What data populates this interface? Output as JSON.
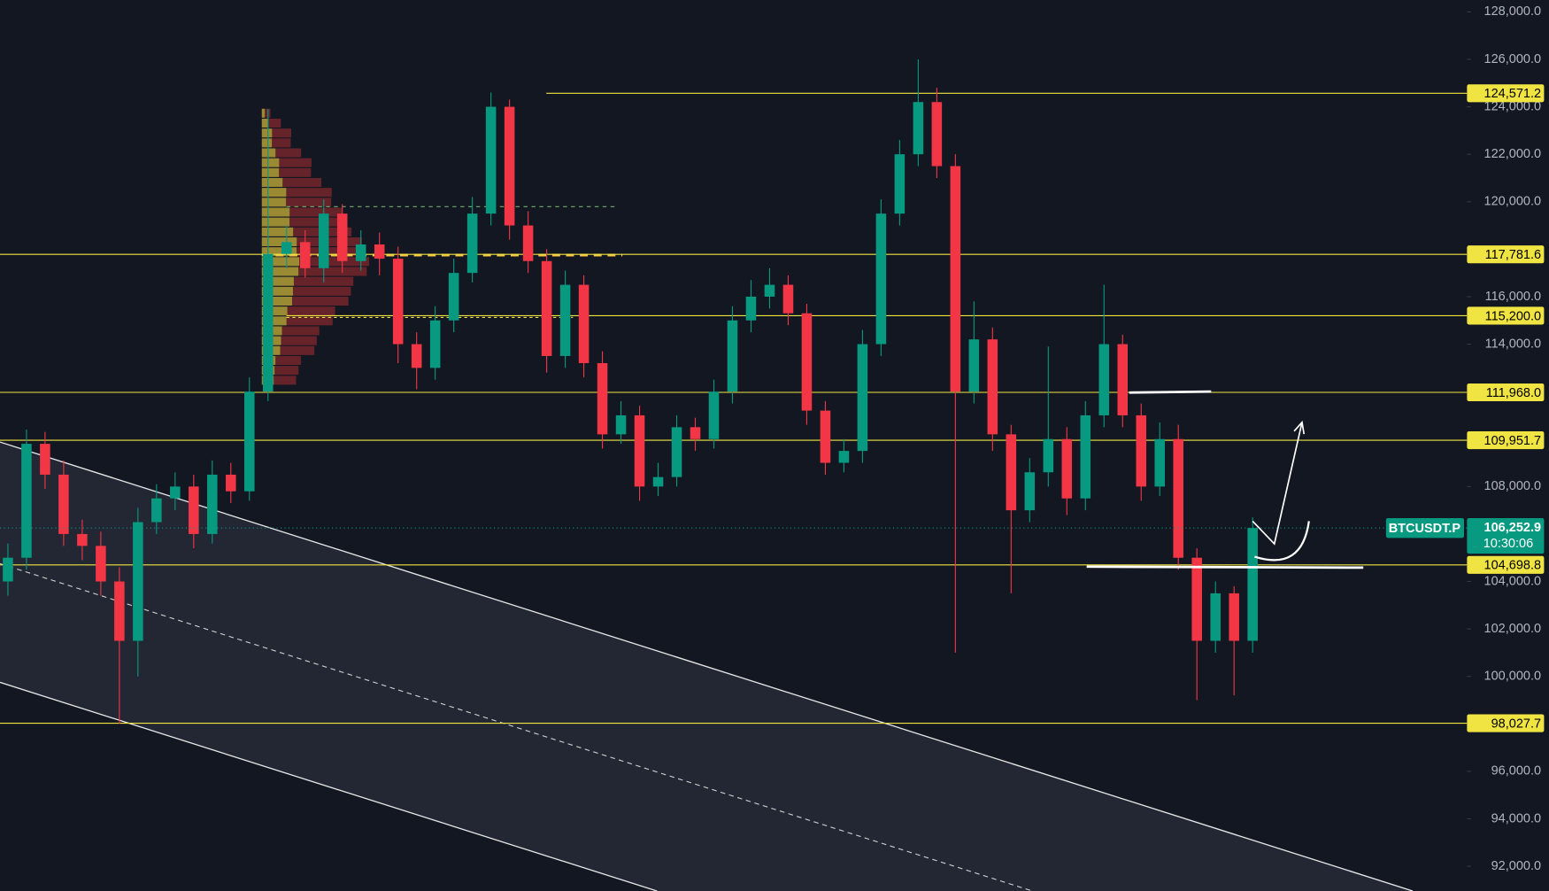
{
  "chart_data": {
    "type": "candlestick",
    "up_color": "#089981",
    "down_color": "#f23645",
    "level_color": "#f0e442",
    "ylim": [
      90958,
      128500
    ],
    "yticks": [
      {
        "value": 92000,
        "label": "92,000.0"
      },
      {
        "value": 94000,
        "label": "94,000.0"
      },
      {
        "value": 96000,
        "label": "96,000.0"
      },
      {
        "value": 100000,
        "label": "100,000.0"
      },
      {
        "value": 102000,
        "label": "102,000.0"
      },
      {
        "value": 104000,
        "label": "104,000.0"
      },
      {
        "value": 108000,
        "label": "108,000.0"
      },
      {
        "value": 114000,
        "label": "114,000.0"
      },
      {
        "value": 116000,
        "label": "116,000.0"
      },
      {
        "value": 120000,
        "label": "120,000.0"
      },
      {
        "value": 122000,
        "label": "122,000.0"
      },
      {
        "value": 124000,
        "label": "124,000.0"
      },
      {
        "value": 126000,
        "label": "126,000.0"
      },
      {
        "value": 128000,
        "label": "128,000.0"
      }
    ],
    "open": [
      104000,
      105000,
      109800,
      108500,
      106000,
      105500,
      104000,
      101500,
      106500,
      107500,
      108000,
      106000,
      108500,
      107800,
      112000,
      117800,
      118300,
      117200,
      119500,
      117500,
      118200,
      117600,
      114000,
      113000,
      115000,
      117000,
      119500,
      124000,
      119000,
      117500,
      113500,
      116500,
      113200,
      110200,
      111000,
      108000,
      108400,
      110500,
      110000,
      112000,
      115000,
      116000,
      116500,
      115300,
      111200,
      109000,
      109500,
      114000,
      119500,
      122000,
      124200,
      121500,
      112000,
      114200,
      110200,
      107000,
      108600,
      110000,
      107500,
      111000,
      114000,
      111000,
      108000,
      110000,
      105000,
      101500,
      103500,
      101500
    ],
    "high": [
      105600,
      110400,
      110300,
      109100,
      106600,
      106100,
      104600,
      107100,
      108100,
      108600,
      108500,
      109100,
      109000,
      112600,
      123900,
      119000,
      118800,
      120100,
      119900,
      118800,
      118700,
      118100,
      114500,
      115600,
      117600,
      120200,
      124600,
      124300,
      119600,
      118000,
      117100,
      116900,
      113700,
      111600,
      111400,
      109000,
      111000,
      110900,
      112500,
      115600,
      116700,
      117200,
      116900,
      115700,
      111600,
      110000,
      114600,
      120100,
      122600,
      126000,
      124800,
      122000,
      115800,
      114700,
      110600,
      109200,
      113900,
      110500,
      111600,
      116500,
      114400,
      111500,
      110700,
      110600,
      105400,
      104000,
      103800,
      106700
    ],
    "low": [
      103400,
      104500,
      107900,
      105500,
      104900,
      103400,
      98000,
      100000,
      106000,
      107000,
      105400,
      105600,
      107300,
      107400,
      111600,
      117200,
      116800,
      116600,
      117000,
      117100,
      116900,
      113200,
      112100,
      112500,
      114500,
      116600,
      119000,
      118400,
      117000,
      112800,
      113000,
      112600,
      109600,
      109800,
      107400,
      107600,
      108000,
      109500,
      109600,
      111500,
      114500,
      115500,
      114800,
      110600,
      108500,
      108600,
      109000,
      113500,
      119000,
      121500,
      121000,
      101000,
      111500,
      109500,
      103500,
      106500,
      108000,
      106800,
      107000,
      110500,
      110500,
      107400,
      107600,
      104500,
      99000,
      101000,
      99200,
      101000
    ],
    "close": [
      105000,
      109800,
      108500,
      106000,
      105500,
      104000,
      101500,
      106500,
      107500,
      108000,
      106000,
      108500,
      107800,
      112000,
      117800,
      118300,
      117200,
      119500,
      117500,
      118200,
      117600,
      114000,
      113000,
      115000,
      117000,
      119500,
      124000,
      119000,
      117500,
      113500,
      116500,
      113200,
      110200,
      111000,
      108000,
      108400,
      110500,
      110000,
      112000,
      115000,
      116000,
      116500,
      115300,
      111200,
      109000,
      109500,
      114000,
      119500,
      122000,
      124200,
      121500,
      112000,
      114200,
      110200,
      107000,
      108600,
      110000,
      107500,
      111000,
      114000,
      111000,
      108000,
      110000,
      105000,
      101500,
      103500,
      101500,
      106252.9
    ],
    "levels": [
      {
        "value": 124571.2,
        "label": "124,571.2"
      },
      {
        "value": 117781.6,
        "label": "117,781.6"
      },
      {
        "value": 115200.0,
        "label": "115,200.0"
      },
      {
        "value": 111968.0,
        "label": "111,968.0"
      },
      {
        "value": 109951.7,
        "label": "109,951.7"
      },
      {
        "value": 104698.8,
        "label": "104,698.8"
      },
      {
        "value": 98027.7,
        "label": "98,027.7"
      }
    ],
    "symbol": "BTCUSDT.P",
    "last_price": {
      "value": 106252.9,
      "label": "106,252.9"
    },
    "countdown": "10:30:06"
  }
}
